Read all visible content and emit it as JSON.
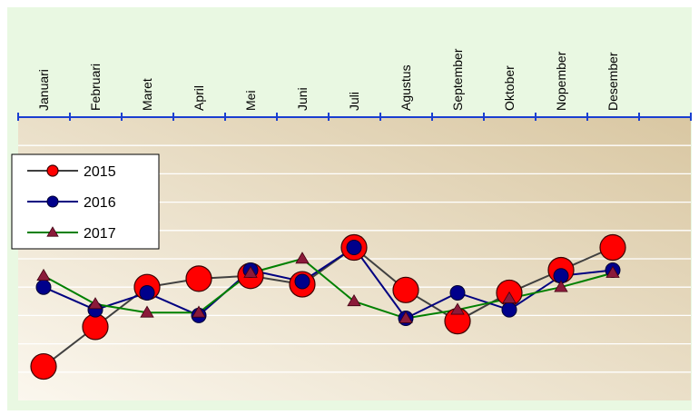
{
  "chart_data": {
    "type": "line",
    "categories": [
      "Januari",
      "Februari",
      "Maret",
      "April",
      "Mei",
      "Juni",
      "Juli",
      "Agustus",
      "September",
      "Oktober",
      "Nopember",
      "Desember"
    ],
    "series": [
      {
        "name": "2015",
        "values": [
          3.2,
          4.6,
          6.0,
          6.3,
          6.4,
          6.1,
          7.4,
          5.9,
          4.8,
          5.8,
          6.6,
          7.4
        ],
        "color": "#ff0000",
        "line_color": "#404040",
        "marker": "large-circle"
      },
      {
        "name": "2016",
        "values": [
          6.0,
          5.2,
          5.8,
          5.0,
          6.6,
          6.2,
          7.4,
          4.9,
          5.8,
          5.2,
          6.4,
          6.6
        ],
        "color": "#00008b",
        "line_color": "#000080",
        "marker": "circle"
      },
      {
        "name": "2017",
        "values": [
          6.4,
          5.4,
          5.1,
          5.1,
          6.5,
          7.0,
          5.5,
          4.9,
          5.2,
          5.6,
          6.0,
          6.5
        ],
        "color": "#8b1a3a",
        "line_color": "#008000",
        "marker": "triangle"
      }
    ],
    "ylim": [
      2,
      12
    ],
    "grid": true,
    "legend_position": "left",
    "colors": {
      "page_bg": "#e9f8e2",
      "axis": "#1a3fd0",
      "gridline": "#ffffff",
      "plot_bg_light": "#fbf7ee",
      "plot_bg_dark": "#d9c7a2"
    }
  }
}
